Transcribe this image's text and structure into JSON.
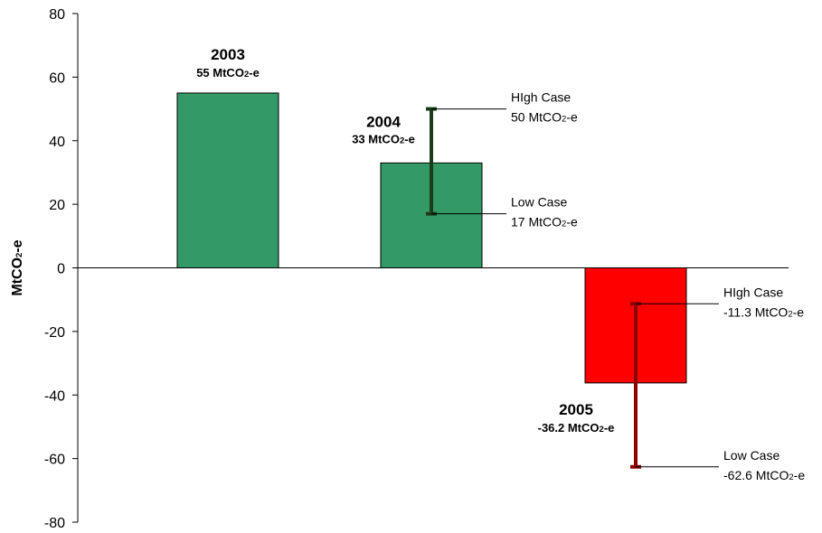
{
  "chart_data": {
    "type": "bar",
    "ylabel": "MtCO2-e",
    "ylim": [
      -80,
      80
    ],
    "yticks": [
      80,
      60,
      40,
      20,
      0,
      -20,
      -40,
      -60,
      -80
    ],
    "grid": false,
    "categories": [
      "2003",
      "2004",
      "2005"
    ],
    "values": [
      55,
      33,
      -36.2
    ],
    "bar_colors": [
      "#339966",
      "#339966",
      "#ff0000"
    ],
    "data_labels": [
      {
        "year": "2003",
        "value_text": "55 MtCO",
        "sub": "2",
        "suffix": "-e"
      },
      {
        "year": "2004",
        "value_text": "33 MtCO",
        "sub": "2",
        "suffix": "-e"
      },
      {
        "year": "2005",
        "value_text": "-36.2 MtCO",
        "sub": "2",
        "suffix": "-e"
      }
    ],
    "error_ranges": [
      null,
      {
        "high": 50,
        "low": 17,
        "color": "#1a3d1a",
        "high_label": "HIgh Case",
        "high_value": "50 MtCO",
        "high_sub": "2",
        "high_suffix": "-e",
        "low_label": "Low Case",
        "low_value": "17 MtCO",
        "low_sub": "2",
        "low_suffix": "-e"
      },
      {
        "high": -11.3,
        "low": -62.6,
        "color": "#8b0000",
        "high_label": "HIgh Case",
        "high_value": "-11.3 MtCO",
        "high_sub": "2",
        "high_suffix": "-e",
        "low_label": "Low Case",
        "low_value": "-62.6 MtCO",
        "low_sub": "2",
        "low_suffix": "-e"
      }
    ]
  }
}
